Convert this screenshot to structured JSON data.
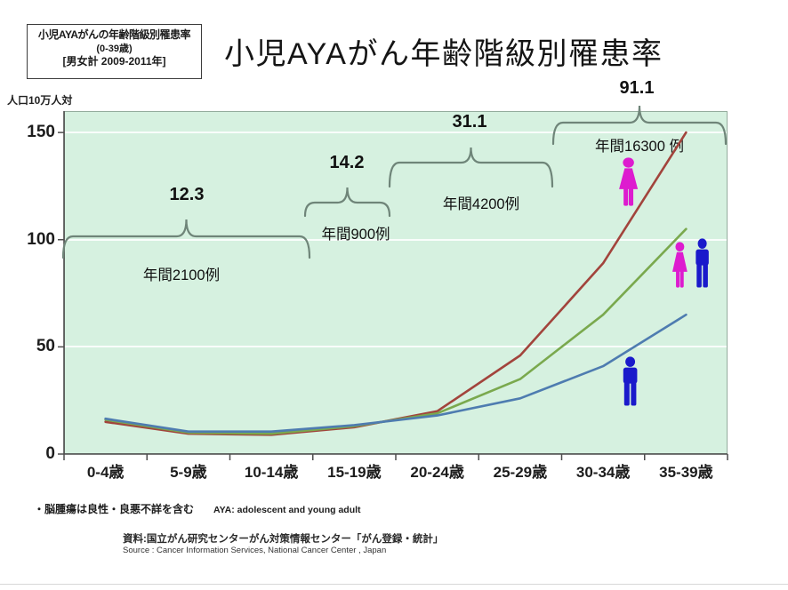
{
  "slide": {
    "info_box": {
      "line1": "小児AYAがんの年齢階級別罹患率",
      "line2": "(0-39歳)",
      "line3": "[男女計 2009-2011年]"
    },
    "title": "小児AYAがん年齢階級別罹患率"
  },
  "chart_data": {
    "type": "line",
    "title": "小児AYAがん年齢階級別罹患率",
    "ylabel": "人口10万人対",
    "xlabel": "",
    "categories": [
      "0-4歳",
      "5-9歳",
      "10-14歳",
      "15-19歳",
      "20-24歳",
      "25-29歳",
      "30-34歳",
      "35-39歳"
    ],
    "yticks": [
      0,
      50,
      100,
      150
    ],
    "ylim": [
      0,
      160
    ],
    "grid": true,
    "legend_position": "none",
    "series": [
      {
        "name": "female",
        "icon": "female-figure-icon",
        "color": "#a2443c",
        "values": [
          15,
          9.5,
          9,
          12.5,
          20,
          46,
          89,
          150
        ]
      },
      {
        "name": "total",
        "icon": "female-and-male-figure-icons",
        "color": "#7aa94e",
        "values": [
          16,
          10,
          9.5,
          13,
          19,
          35,
          65,
          105
        ]
      },
      {
        "name": "male",
        "icon": "male-figure-icon",
        "color": "#4e7cb0",
        "values": [
          16.5,
          10.5,
          10.5,
          13.5,
          18,
          26,
          41,
          65
        ]
      }
    ],
    "annotations": [
      {
        "rate": "12.3",
        "cases": "年間2100例",
        "span_start": "0-4歳",
        "span_end": "10-14歳"
      },
      {
        "rate": "14.2",
        "cases": "年間900例",
        "span_start": "15-19歳",
        "span_end": "15-19歳"
      },
      {
        "rate": "31.1",
        "cases": "年間4200例",
        "span_start": "20-24歳",
        "span_end": "25-29歳"
      },
      {
        "rate": "91.1",
        "cases": "年間16300 例",
        "span_start": "30-34歳",
        "span_end": "35-39歳"
      }
    ],
    "colors": {
      "plot_background": "#d6f1e0",
      "female_line": "#a2443c",
      "total_line": "#7aa94e",
      "male_line": "#4e7cb0",
      "female_icon": "#dd1ccf",
      "male_icon": "#1a1acb",
      "brace": "#6f8579"
    }
  },
  "footnotes": {
    "note": "・脳腫瘍は良性・良悪不詳を含む",
    "aya": "AYA: adolescent and young adult",
    "source_ja": "資料:国立がん研究センターがん対策情報センター「がん登録・統計」",
    "source_en": "Source : Cancer Information Services, National Cancer Center , Japan"
  }
}
